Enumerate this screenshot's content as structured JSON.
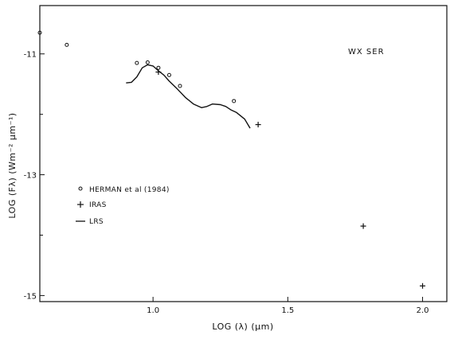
{
  "chart_data": {
    "type": "scatter",
    "title": "",
    "annotation": "WX SER",
    "xlabel": "LOG (λ) (μm)",
    "ylabel": "LOG (Fλ) (Wm⁻² μm⁻¹)",
    "xlim": [
      0.58,
      2.09
    ],
    "ylim": [
      -15.1,
      -10.2
    ],
    "x_ticks": [
      {
        "value": 1.0,
        "label": "1.0"
      },
      {
        "value": 1.5,
        "label": "1.5"
      },
      {
        "value": 2.0,
        "label": "2.0"
      }
    ],
    "y_ticks": [
      {
        "value": -11,
        "label": "-11"
      },
      {
        "value": -13,
        "label": "-13"
      },
      {
        "value": -15,
        "label": "-15"
      }
    ],
    "y_minor_ticks": [
      -12,
      -14
    ],
    "grid": false,
    "legend_position": "left-middle",
    "series": [
      {
        "name": "HERMAN et al (1984)",
        "marker": "circle",
        "points": [
          {
            "x": 0.58,
            "y": -10.65
          },
          {
            "x": 0.68,
            "y": -10.85
          },
          {
            "x": 0.94,
            "y": -11.15
          },
          {
            "x": 0.98,
            "y": -11.14
          },
          {
            "x": 1.02,
            "y": -11.23
          },
          {
            "x": 1.06,
            "y": -11.35
          },
          {
            "x": 1.1,
            "y": -11.53
          },
          {
            "x": 1.3,
            "y": -11.78
          }
        ]
      },
      {
        "name": "IRAS",
        "marker": "plus",
        "points": [
          {
            "x": 1.02,
            "y": -11.3
          },
          {
            "x": 1.39,
            "y": -12.17
          },
          {
            "x": 1.78,
            "y": -13.85
          },
          {
            "x": 2.0,
            "y": -14.84
          }
        ]
      },
      {
        "name": "LRS",
        "marker": "line",
        "points": [
          {
            "x": 0.9,
            "y": -11.48
          },
          {
            "x": 0.92,
            "y": -11.47
          },
          {
            "x": 0.94,
            "y": -11.38
          },
          {
            "x": 0.96,
            "y": -11.23
          },
          {
            "x": 0.98,
            "y": -11.18
          },
          {
            "x": 1.0,
            "y": -11.2
          },
          {
            "x": 1.02,
            "y": -11.28
          },
          {
            "x": 1.04,
            "y": -11.35
          },
          {
            "x": 1.06,
            "y": -11.45
          },
          {
            "x": 1.09,
            "y": -11.58
          },
          {
            "x": 1.12,
            "y": -11.72
          },
          {
            "x": 1.15,
            "y": -11.83
          },
          {
            "x": 1.18,
            "y": -11.89
          },
          {
            "x": 1.2,
            "y": -11.87
          },
          {
            "x": 1.22,
            "y": -11.83
          },
          {
            "x": 1.25,
            "y": -11.84
          },
          {
            "x": 1.27,
            "y": -11.87
          },
          {
            "x": 1.29,
            "y": -11.93
          },
          {
            "x": 1.31,
            "y": -11.97
          },
          {
            "x": 1.34,
            "y": -12.08
          },
          {
            "x": 1.36,
            "y": -12.23
          }
        ]
      }
    ]
  }
}
